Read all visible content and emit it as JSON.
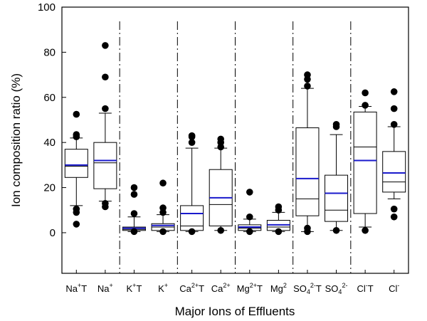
{
  "chart_data": {
    "type": "boxplot",
    "title": "",
    "xlabel": "Major Ions of Effluents",
    "ylabel": "Ion composition ratio (%)",
    "ylim": [
      -18,
      100
    ],
    "yticks": [
      0,
      20,
      40,
      60,
      80,
      100
    ],
    "grid": false,
    "mean_line_color": "#1a1acc",
    "categories": [
      {
        "base": "Na",
        "sup": "+",
        "suffix": "T"
      },
      {
        "base": "Na",
        "sup": "+",
        "suffix": ""
      },
      {
        "base": "K",
        "sup": "+",
        "suffix": "T"
      },
      {
        "base": "K",
        "sup": "+",
        "suffix": ""
      },
      {
        "base": "Ca",
        "sup": "2+",
        "suffix": "T"
      },
      {
        "base": "Ca",
        "sup": "2+",
        "suffix": ""
      },
      {
        "base": "Mg",
        "sup": "2+",
        "suffix": "T"
      },
      {
        "base": "Mg",
        "sup": "2",
        "suffix": ""
      },
      {
        "base": "SO",
        "sub": "4",
        "sup": "2-",
        "suffix": "T"
      },
      {
        "base": "SO",
        "sub": "4",
        "sup": "2-",
        "suffix": ""
      },
      {
        "base": "Cl",
        "sup": "-",
        "suffix": "T"
      },
      {
        "base": "Cl",
        "sup": "-",
        "suffix": ""
      }
    ],
    "boxes": [
      {
        "whisker_low": 12,
        "q1": 24.5,
        "median": 29.5,
        "mean": 30,
        "q3": 37,
        "whisker_high": 42,
        "outliers": [
          3.8,
          9,
          10.5,
          42.5,
          43.5,
          52.5
        ]
      },
      {
        "whisker_low": 14,
        "q1": 19.5,
        "median": 31,
        "mean": 32,
        "q3": 40,
        "whisker_high": 53,
        "outliers": [
          11.5,
          13,
          55,
          69,
          83
        ]
      },
      {
        "whisker_low": 0.5,
        "q1": 1,
        "median": 1.5,
        "mean": 2,
        "q3": 2.5,
        "whisker_high": 7,
        "outliers": [
          0.5,
          8.5,
          17,
          20
        ]
      },
      {
        "whisker_low": 0.5,
        "q1": 1,
        "median": 2.5,
        "mean": 3.2,
        "q3": 4,
        "whisker_high": 8,
        "outliers": [
          0.5,
          9,
          11,
          22
        ]
      },
      {
        "whisker_low": 0.5,
        "q1": 1,
        "median": 3,
        "mean": 8.5,
        "q3": 12,
        "whisker_high": 37.5,
        "outliers": [
          0.5,
          40,
          42.5,
          43
        ]
      },
      {
        "whisker_low": 1,
        "q1": 3,
        "median": 12.5,
        "mean": 15.5,
        "q3": 28,
        "whisker_high": 37.5,
        "outliers": [
          1,
          38,
          40,
          41.5
        ]
      },
      {
        "whisker_low": 0.5,
        "q1": 1,
        "median": 2,
        "mean": 2.5,
        "q3": 3.5,
        "whisker_high": 6,
        "outliers": [
          0.5,
          7,
          18
        ]
      },
      {
        "whisker_low": 0.5,
        "q1": 1,
        "median": 2.5,
        "mean": 3.5,
        "q3": 5.5,
        "whisker_high": 9,
        "outliers": [
          0.5,
          10,
          11.5
        ]
      },
      {
        "whisker_low": 0.5,
        "q1": 7.5,
        "median": 15,
        "mean": 24,
        "q3": 46.5,
        "whisker_high": 64,
        "outliers": [
          0.5,
          2,
          65,
          68,
          70
        ]
      },
      {
        "whisker_low": 1,
        "q1": 5,
        "median": 10,
        "mean": 17.5,
        "q3": 25.5,
        "whisker_high": 43.5,
        "outliers": [
          1,
          47,
          48
        ]
      },
      {
        "whisker_low": 2.5,
        "q1": 8.5,
        "median": 38,
        "mean": 32,
        "q3": 53.5,
        "whisker_high": 56,
        "outliers": [
          1,
          56.5,
          62
        ]
      },
      {
        "whisker_low": 15,
        "q1": 18,
        "median": 22.5,
        "mean": 26.5,
        "q3": 36,
        "whisker_high": 47,
        "outliers": [
          7,
          10.5,
          48,
          55,
          62.5
        ]
      }
    ],
    "separators_after": [
      2,
      4,
      6,
      8,
      10
    ]
  }
}
